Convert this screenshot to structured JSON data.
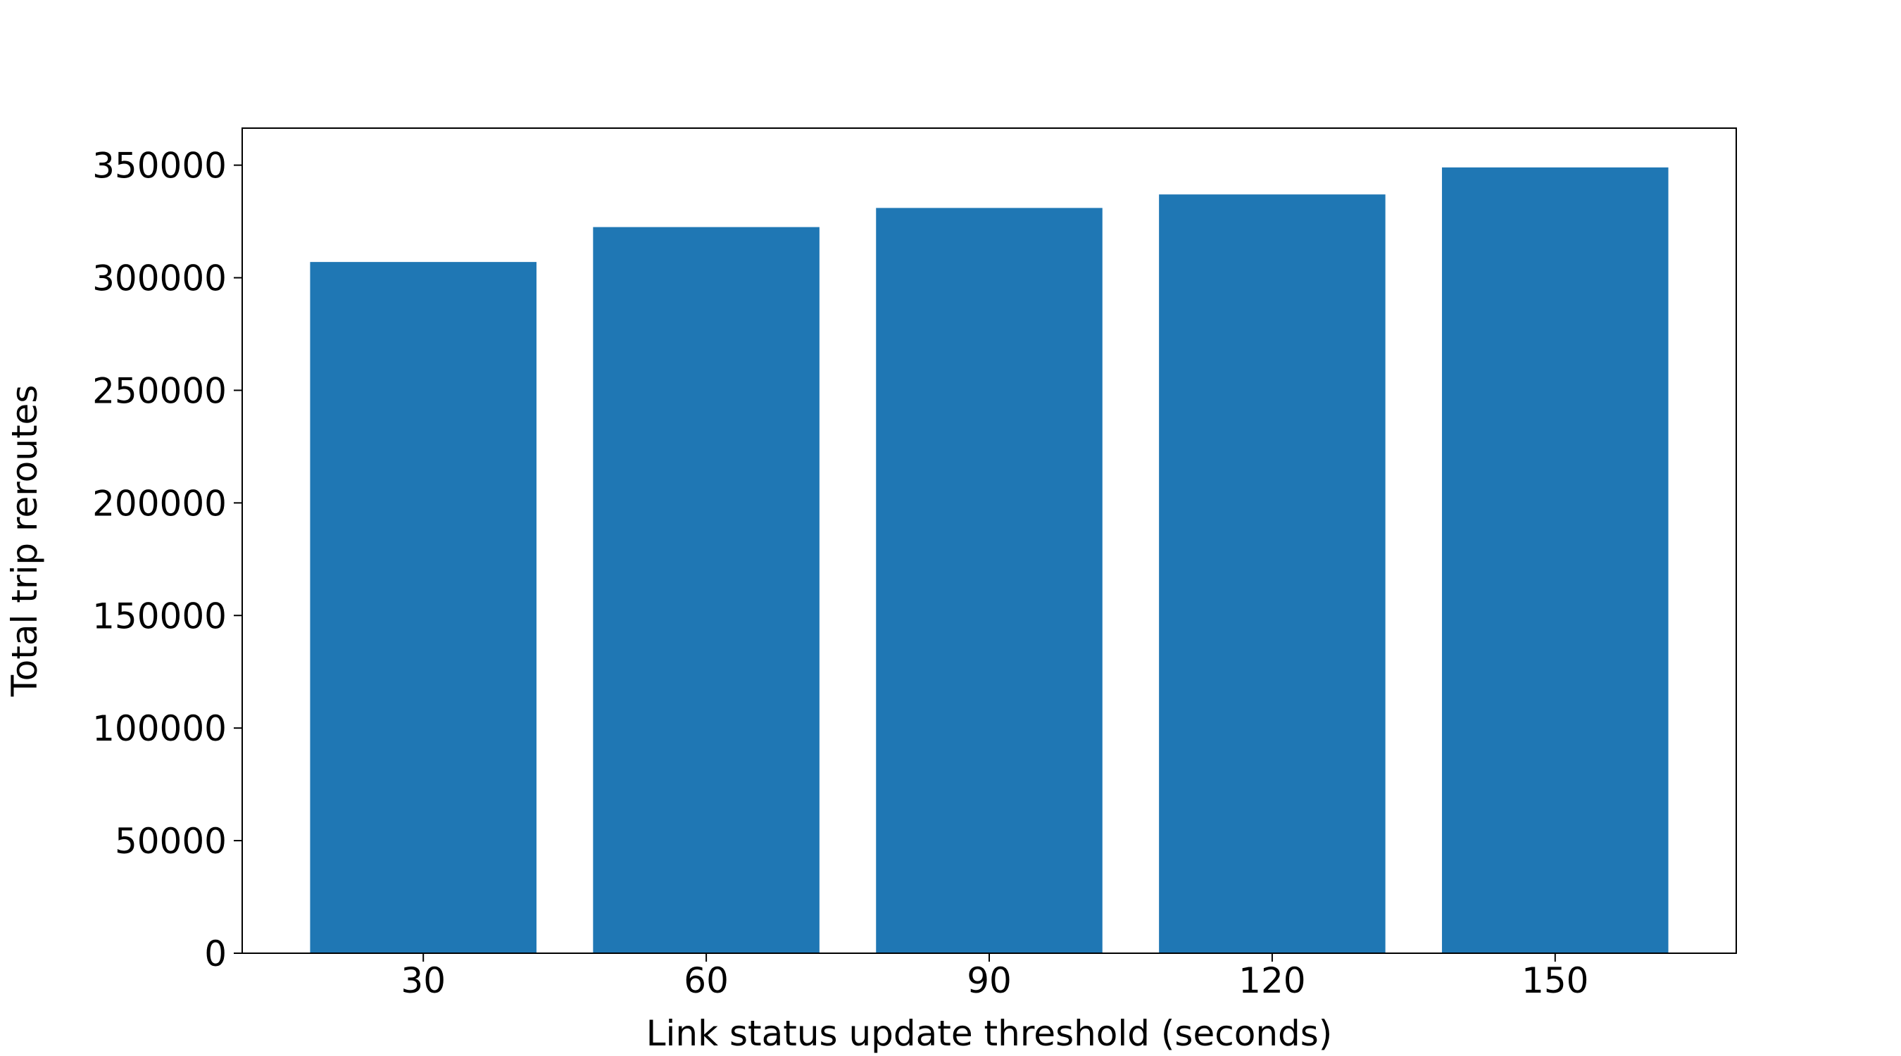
{
  "chart_data": {
    "type": "bar",
    "x_label": "Link status update threshold (seconds)",
    "y_label": "Total trip reroutes",
    "categories": [
      "30",
      "60",
      "90",
      "120",
      "150"
    ],
    "values": [
      307000,
      322500,
      331000,
      337000,
      349000
    ],
    "color": "#1f77b4",
    "ylim": [
      0,
      366450
    ],
    "yticks": [
      0,
      50000,
      100000,
      150000,
      200000,
      250000,
      300000,
      350000
    ],
    "grid": false
  }
}
